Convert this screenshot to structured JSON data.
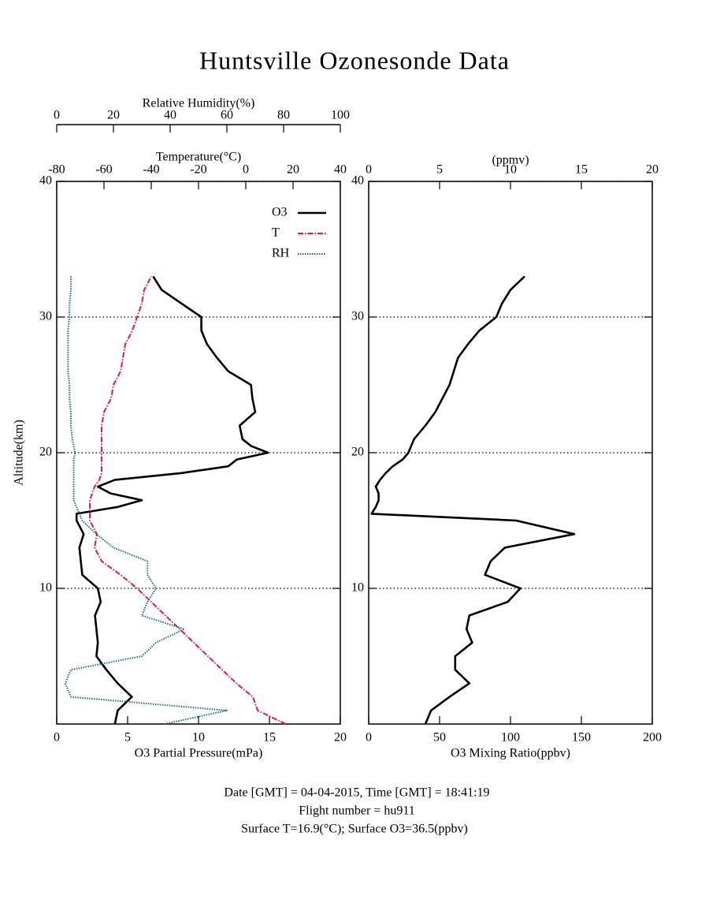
{
  "title": "Huntsville Ozonesonde Data",
  "footer": [
    "Date [GMT] = 04-04-2015,  Time [GMT] = 18:41:19",
    "Flight number = hu911",
    "Surface T=16.9(°C); Surface O3=36.5(ppbv)"
  ],
  "chart_data": [
    {
      "type": "line",
      "ylabel": "Altitude(km)",
      "ylim": [
        0,
        40
      ],
      "yticks": [
        10,
        20,
        30,
        40
      ],
      "grid": "y",
      "y": [
        0,
        1,
        2,
        3,
        4,
        5,
        6,
        7,
        8,
        9,
        10,
        11,
        12,
        13,
        14,
        15,
        15.5,
        16,
        16.5,
        17,
        17.5,
        18,
        18.5,
        19,
        19.5,
        20,
        20.5,
        21,
        22,
        23,
        24,
        25,
        26,
        27,
        28,
        29,
        30,
        31,
        32,
        33
      ],
      "xlabel": "O3 Partial Pressure(mPa)",
      "xlim": [
        0,
        20
      ],
      "xticks": [
        0,
        5,
        10,
        15,
        20
      ],
      "x2label": "Temperature(°C)",
      "x2lim": [
        -80,
        40
      ],
      "x2ticks": [
        -80,
        -60,
        -40,
        -20,
        0,
        20,
        40
      ],
      "x3label": "Relative Humidity(%)",
      "x3lim": [
        0,
        100
      ],
      "x3ticks": [
        0,
        20,
        40,
        60,
        80,
        100
      ],
      "legend": "upper right",
      "series": [
        {
          "name": "O3",
          "color": "#000000",
          "axis": "x",
          "style": "solid",
          "values": [
            4.1,
            4.3,
            5.3,
            4.3,
            3.5,
            2.8,
            2.9,
            2.8,
            2.7,
            3.1,
            2.9,
            1.8,
            1.7,
            1.6,
            1.9,
            1.4,
            1.4,
            4.3,
            6.0,
            3.8,
            2.9,
            4.1,
            8.8,
            12.1,
            12.7,
            14.9,
            13.7,
            13.1,
            12.9,
            14.0,
            13.8,
            13.7,
            12.1,
            11.3,
            10.6,
            10.2,
            10.2,
            8.8,
            7.4,
            6.8
          ]
        },
        {
          "name": "T",
          "color": "#e8174a",
          "axis": "x2",
          "style": "dashdot",
          "values": [
            16.9,
            5,
            3,
            -4,
            -10,
            -16,
            -22,
            -28,
            -34,
            -40,
            -46,
            -53,
            -61,
            -64,
            -63,
            -66,
            -66,
            -66,
            -66,
            -65,
            -64,
            -62,
            -61,
            -61,
            -61,
            -61,
            -61,
            -61,
            -61,
            -60,
            -57,
            -56,
            -53,
            -52,
            -51,
            -48,
            -46,
            -44,
            -43,
            -40
          ]
        },
        {
          "name": "RH",
          "color": "#1f6e73",
          "axis": "x3",
          "style": "dotted",
          "values": [
            38,
            60,
            5,
            3,
            5,
            30,
            35,
            45,
            30,
            32,
            35,
            32,
            32,
            20,
            14,
            9,
            8,
            7,
            6,
            6,
            6,
            6,
            6,
            6,
            6,
            6.5,
            6,
            5.5,
            5,
            5,
            4.5,
            4.5,
            4,
            4,
            4,
            4,
            4.5,
            4.5,
            5,
            5
          ]
        }
      ]
    },
    {
      "type": "line",
      "ylim": [
        0,
        40
      ],
      "yticks": [
        10,
        20,
        30,
        40
      ],
      "grid": "y",
      "y": [
        0,
        1,
        2,
        3,
        4,
        5,
        6,
        7,
        8,
        9,
        10,
        11,
        12,
        13,
        14,
        15,
        15.5,
        16,
        16.5,
        17,
        17.5,
        18,
        18.5,
        19,
        19.5,
        20,
        20.5,
        21,
        22,
        23,
        24,
        25,
        26,
        27,
        28,
        29,
        30,
        31,
        32,
        33
      ],
      "xlabel": "O3 Mixing Ratio(ppbv)",
      "xlim": [
        0,
        200
      ],
      "xticks": [
        0,
        50,
        100,
        150,
        200
      ],
      "x2label": "(ppmv)",
      "x2lim": [
        0,
        20
      ],
      "x2ticks": [
        0,
        5,
        10,
        15,
        20
      ],
      "series": [
        {
          "color": "#000000",
          "axis": "x",
          "style": "solid",
          "values": [
            40,
            44,
            57,
            71,
            61,
            61,
            73,
            69,
            71,
            98,
            107,
            82,
            86,
            96,
            145,
            104,
            2,
            5,
            7,
            7,
            5,
            8,
            12,
            17,
            24,
            28,
            30,
            32,
            40,
            47,
            52,
            57,
            60,
            63,
            70,
            78,
            90,
            94,
            100,
            110
          ]
        }
      ]
    }
  ]
}
